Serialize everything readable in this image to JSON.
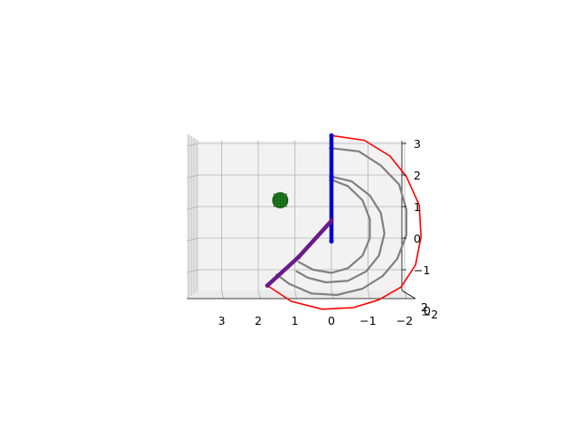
{
  "chart_data": {
    "type": "3d-line",
    "projection": "3d",
    "grid": true,
    "x_ticks": [
      {
        "value": 3,
        "label": "3"
      },
      {
        "value": 2,
        "label": "2"
      },
      {
        "value": 1,
        "label": "1"
      },
      {
        "value": 0,
        "label": "0"
      },
      {
        "value": -1,
        "label": "−1"
      },
      {
        "value": -2,
        "label": "−2"
      }
    ],
    "z_ticks": [
      {
        "value": 3,
        "label": "3"
      },
      {
        "value": 2,
        "label": "2"
      },
      {
        "value": 1,
        "label": "1"
      },
      {
        "value": 0,
        "label": "0"
      },
      {
        "value": -1,
        "label": "−1"
      }
    ],
    "y_ticks": [
      {
        "value": 2,
        "label": "2"
      },
      {
        "value": 0,
        "label": "0"
      },
      {
        "value": -2,
        "label": "−2"
      }
    ],
    "xlim": [
      3.9,
      -2.3
    ],
    "zlim": [
      -1.8,
      3.3
    ],
    "series": [
      {
        "kind": "curve",
        "color": "#ff0000",
        "points": [
          [
            0,
            3.25
          ],
          [
            -0.9,
            3.1
          ],
          [
            -1.6,
            2.6
          ],
          [
            -2.05,
            1.95
          ],
          [
            -2.4,
            1.05
          ],
          [
            -2.45,
            0.05
          ],
          [
            -2.3,
            -0.85
          ],
          [
            -1.9,
            -1.55
          ],
          [
            -1.3,
            -1.95
          ],
          [
            -0.6,
            -2.2
          ],
          [
            0.25,
            -2.25
          ],
          [
            1.1,
            -2.0
          ],
          [
            1.75,
            -1.5
          ]
        ]
      },
      {
        "kind": "curve",
        "color": "#808080",
        "points": [
          [
            0,
            2.85
          ],
          [
            -0.75,
            2.75
          ],
          [
            -1.35,
            2.3
          ],
          [
            -1.85,
            1.7
          ],
          [
            -2.05,
            0.9
          ],
          [
            -2.05,
            0.1
          ],
          [
            -1.8,
            -0.65
          ],
          [
            -1.4,
            -1.2
          ],
          [
            -0.85,
            -1.6
          ],
          [
            -0.15,
            -1.8
          ],
          [
            0.55,
            -1.75
          ],
          [
            1.15,
            -1.45
          ],
          [
            1.5,
            -1.15
          ]
        ]
      },
      {
        "kind": "curve",
        "color": "#808080",
        "points": [
          [
            0,
            1.95
          ],
          [
            -0.55,
            1.8
          ],
          [
            -1.05,
            1.35
          ],
          [
            -1.35,
            0.8
          ],
          [
            -1.45,
            0.15
          ],
          [
            -1.3,
            -0.55
          ],
          [
            -0.95,
            -1.05
          ],
          [
            -0.45,
            -1.35
          ],
          [
            0.15,
            -1.4
          ],
          [
            0.65,
            -1.25
          ],
          [
            0.95,
            -1.05
          ]
        ]
      },
      {
        "kind": "curve",
        "color": "#808080",
        "points": [
          [
            0,
            1.85
          ],
          [
            -0.45,
            1.65
          ],
          [
            -0.85,
            1.2
          ],
          [
            -1.05,
            0.6
          ],
          [
            -1.05,
            0.0
          ],
          [
            -0.85,
            -0.55
          ],
          [
            -0.45,
            -0.95
          ],
          [
            0.0,
            -1.1
          ],
          [
            0.5,
            -1.0
          ],
          [
            0.9,
            -0.75
          ]
        ]
      },
      {
        "kind": "arm",
        "color": "#0000cc",
        "points": [
          [
            0,
            -0.1
          ],
          [
            0,
            0.55
          ],
          [
            0,
            1.85
          ],
          [
            0,
            1.95
          ],
          [
            0,
            2.85
          ],
          [
            0,
            3.25
          ]
        ]
      },
      {
        "kind": "arm",
        "color": "#6a1b8a",
        "points": [
          [
            0,
            0.55
          ],
          [
            0.9,
            -0.6
          ],
          [
            1.75,
            -1.5
          ]
        ]
      },
      {
        "kind": "sphere",
        "color": "#1e7b1e",
        "center": [
          1.4,
          1.2
        ]
      }
    ]
  }
}
